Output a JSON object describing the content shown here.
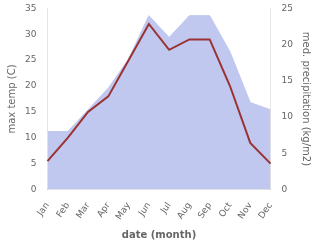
{
  "chart_data": {
    "type": "line",
    "categories": [
      "Jan",
      "Feb",
      "Mar",
      "Apr",
      "May",
      "Jun",
      "Jul",
      "Aug",
      "Sep",
      "Oct",
      "Nov",
      "Dec"
    ],
    "series": [
      {
        "color": "#993333",
        "values": [
          5.5,
          10.0,
          15.0,
          18.0,
          25.0,
          32.0,
          27.0,
          29.0,
          29.0,
          20.0,
          9.0,
          5.0
        ]
      },
      {
        "type": "area",
        "axis": "y2",
        "color": "#c0c8f0",
        "values": [
          8.0,
          8.0,
          11.0,
          14.0,
          18.0,
          24.0,
          21.0,
          24.0,
          24.0,
          19.0,
          12.0,
          11.0
        ]
      }
    ],
    "xlabel": "date (month)",
    "ylabel": "max temp (C)",
    "y2label": "med. precipitation (kg/m2)",
    "ylim": [
      0,
      35
    ],
    "yticks": [
      0,
      5,
      10,
      15,
      20,
      25,
      30,
      35
    ],
    "y2lim": [
      0,
      25
    ],
    "y2ticks": [
      0,
      5,
      10,
      15,
      20,
      25
    ],
    "grid": false
  }
}
